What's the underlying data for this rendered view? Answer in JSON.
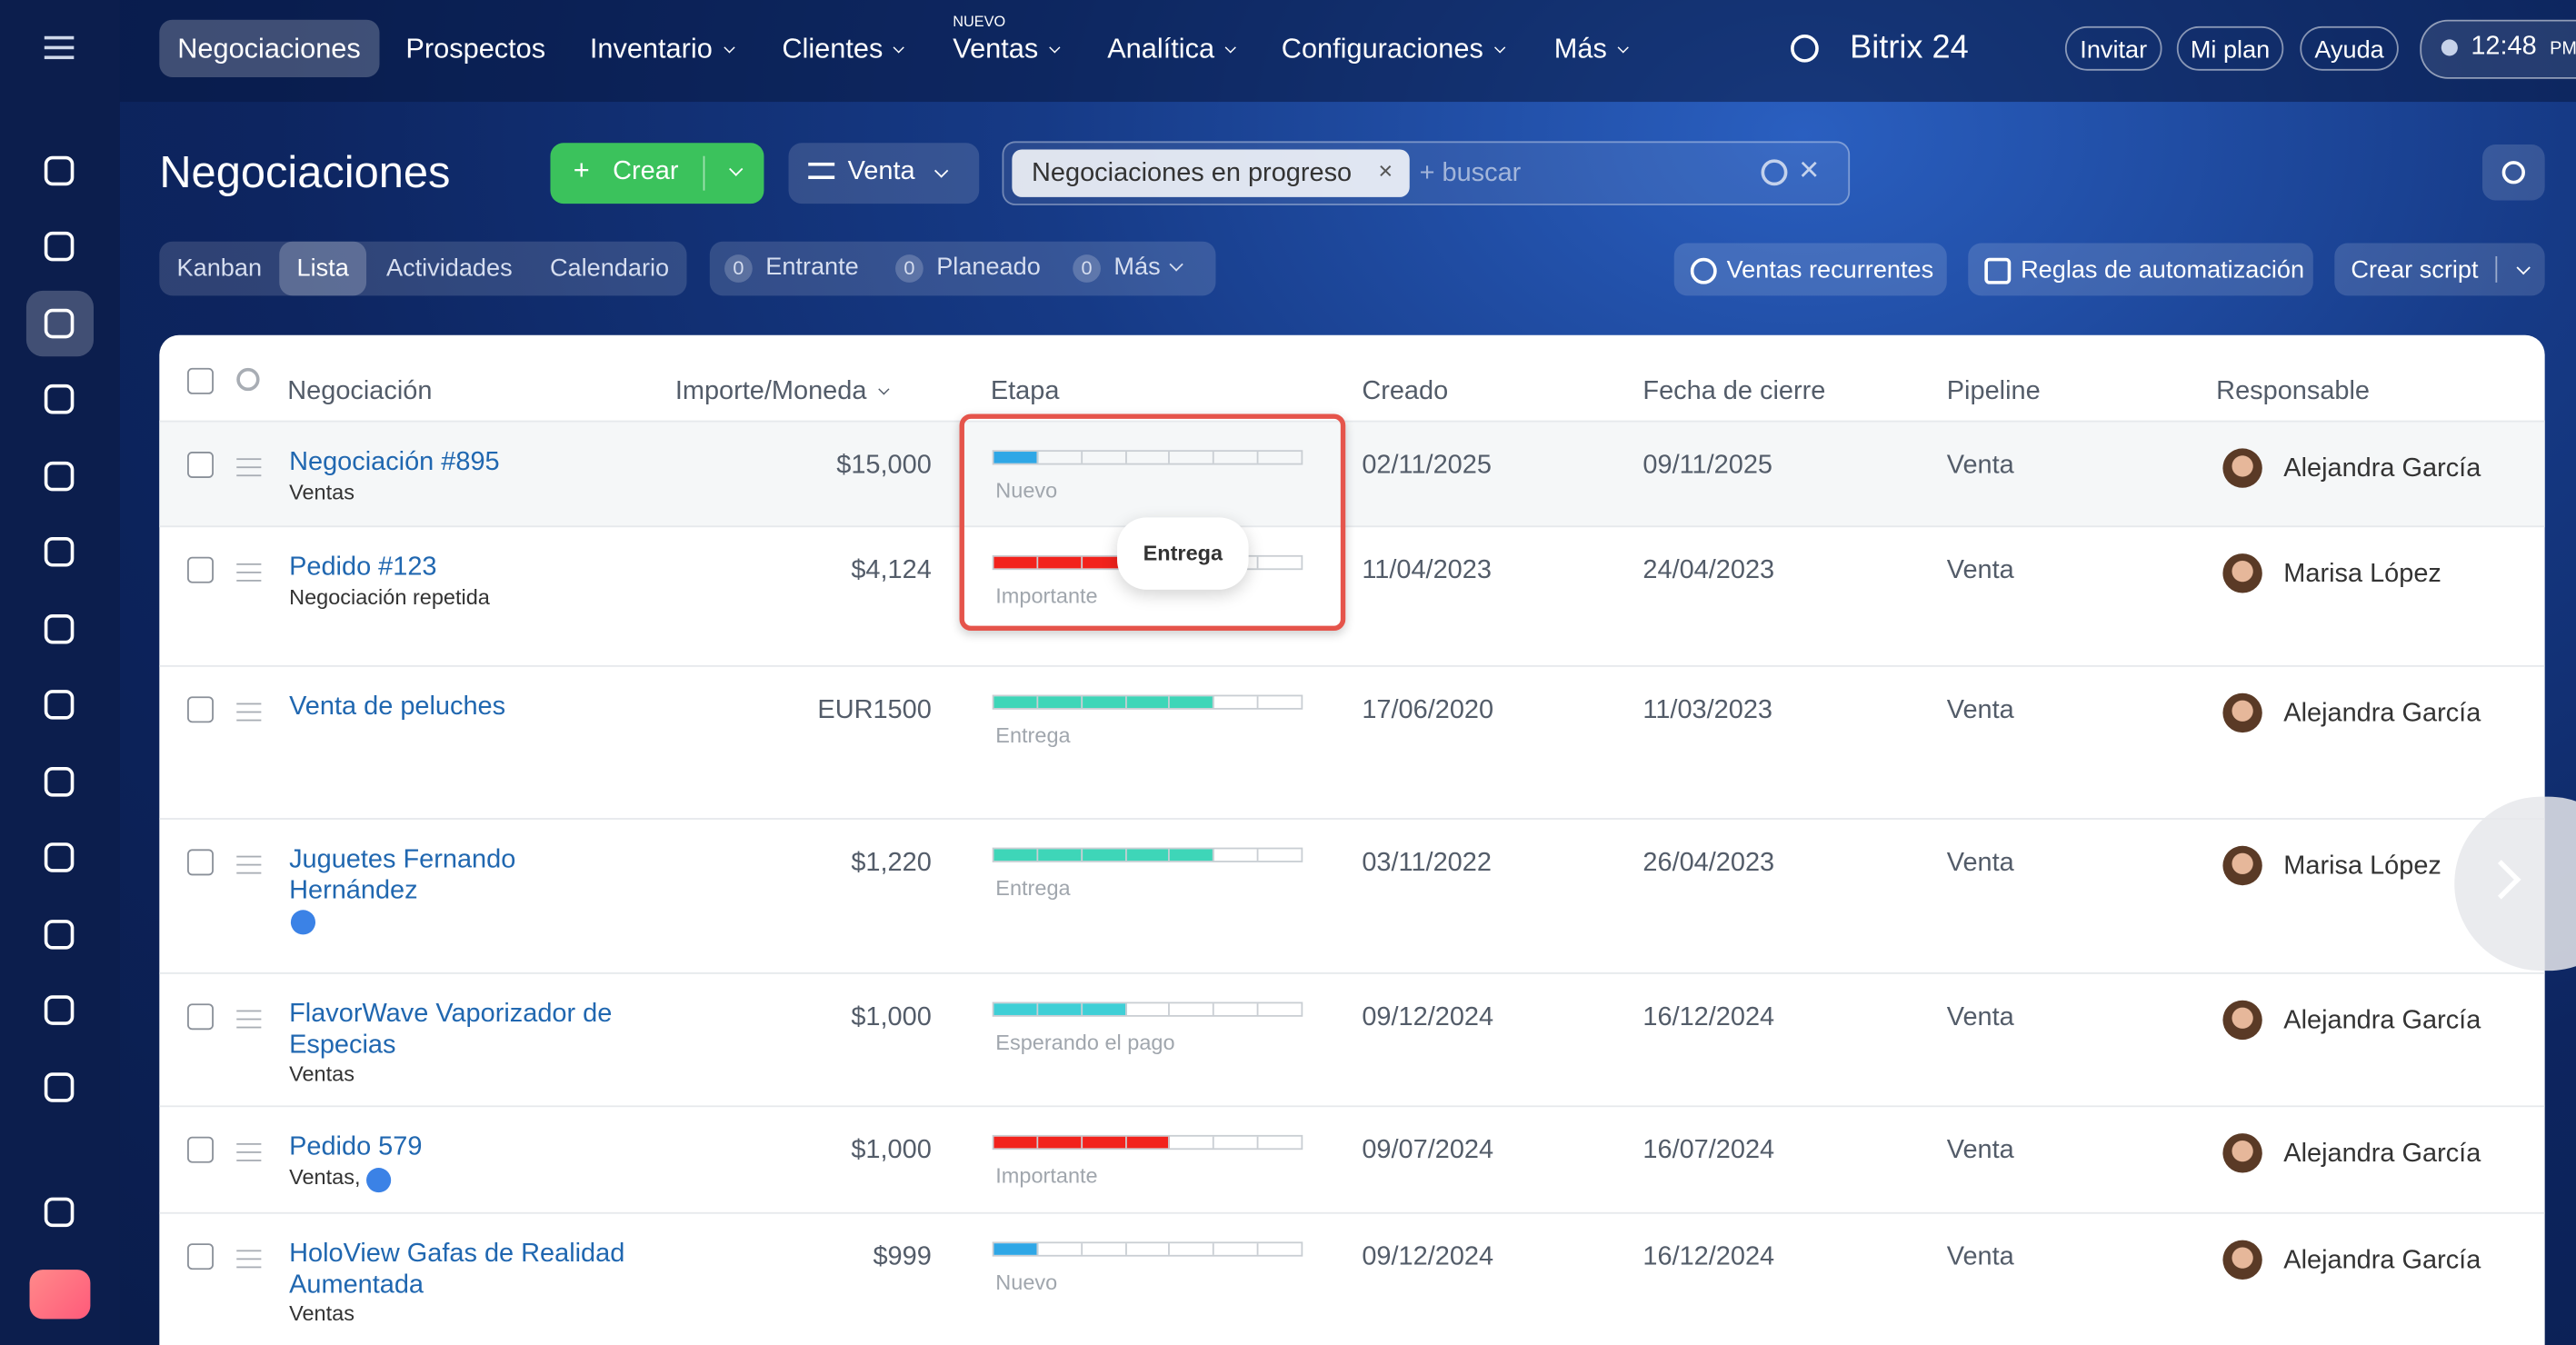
{
  "top_nav": {
    "items": [
      "Negociaciones",
      "Prospectos",
      "Inventario",
      "Clientes",
      "Ventas",
      "Analítica",
      "Configuraciones",
      "Más"
    ],
    "badge": "NUEVO",
    "brand": "Bitrix 24",
    "buttons": [
      "Invitar",
      "Mi plan",
      "Ayuda"
    ],
    "time": "12:48",
    "ampm": "PM"
  },
  "header": {
    "title": "Negociaciones",
    "create": "Crear",
    "pipeline": "Venta",
    "filter_chip": "Negociaciones en progreso",
    "search_placeholder": "+ buscar"
  },
  "views": [
    "Kanban",
    "Lista",
    "Actividades",
    "Calendario"
  ],
  "counters": [
    {
      "count": 0,
      "label": "Entrante"
    },
    {
      "count": 0,
      "label": "Planeado"
    },
    {
      "count": 0,
      "label": "Más"
    }
  ],
  "actions": [
    "Ventas recurrentes",
    "Reglas de automatización",
    "Crear script"
  ],
  "table": {
    "columns": [
      "Negociación",
      "Importe/Moneda",
      "Etapa",
      "Creado",
      "Fecha de cierre",
      "Pipeline",
      "Responsable"
    ],
    "rows": [
      {
        "name": "Negociación #895",
        "sub": "Ventas",
        "amount": "$15,000",
        "stage": "Nuevo",
        "created": "02/11/2025",
        "closing": "09/11/2025",
        "pipeline": "Venta",
        "owner": "Alejandra García"
      },
      {
        "name": "Pedido #123",
        "sub": "Negociación repetida",
        "amount": "$4,124",
        "stage": "Importante",
        "created": "11/04/2023",
        "closing": "24/04/2023",
        "pipeline": "Venta",
        "owner": "Marisa López"
      },
      {
        "name": "Venta de peluches",
        "amount": "EUR1500",
        "stage": "Entrega",
        "created": "17/06/2020",
        "closing": "11/03/2023",
        "pipeline": "Venta",
        "owner": "Alejandra García"
      },
      {
        "name": "Juguetes Fernando Hernández",
        "amount": "$1,220",
        "stage": "Entrega",
        "created": "03/11/2022",
        "closing": "26/04/2023",
        "pipeline": "Venta",
        "owner": "Marisa López"
      },
      {
        "name": "FlavorWave Vaporizador de Especias",
        "sub": "Ventas",
        "amount": "$1,000",
        "stage": "Esperando el pago",
        "created": "09/12/2024",
        "closing": "16/12/2024",
        "pipeline": "Venta",
        "owner": "Alejandra García"
      },
      {
        "name": "Pedido 579",
        "sub": "Ventas,",
        "amount": "$1,000",
        "stage": "Importante",
        "created": "09/07/2024",
        "closing": "16/07/2024",
        "pipeline": "Venta",
        "owner": "Alejandra García"
      },
      {
        "name": "HoloView Gafas de Realidad Aumentada",
        "sub": "Ventas",
        "amount": "$999",
        "stage": "Nuevo",
        "created": "09/12/2024",
        "closing": "16/12/2024",
        "pipeline": "Venta",
        "owner": "Alejandra García"
      }
    ]
  },
  "tooltip": "Entrega"
}
